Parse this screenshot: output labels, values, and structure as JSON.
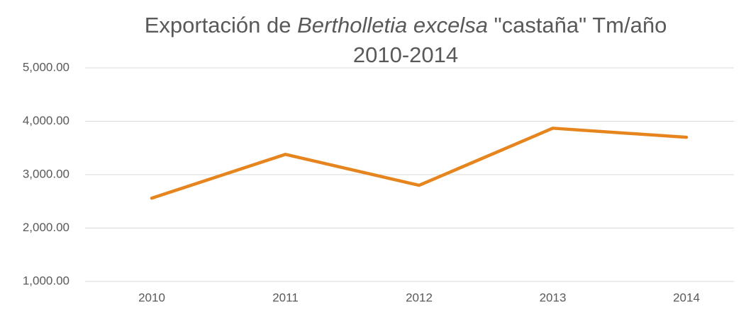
{
  "chart_data": {
    "type": "line",
    "title": [
      "Exportación de",
      "Bertholletia excelsa",
      "\"castaña\" Tm/año",
      "2010-2014"
    ],
    "categories": [
      "2010",
      "2011",
      "2012",
      "2013",
      "2014"
    ],
    "series": [
      {
        "color": "#e6851e",
        "values": [
          2560,
          3380,
          2800,
          3870,
          3700
        ]
      }
    ],
    "ylim": [
      1000,
      5000
    ],
    "yticks": [
      {
        "value": 1000,
        "label": "1,000.00"
      },
      {
        "value": 2000,
        "label": "2,000.00"
      },
      {
        "value": 3000,
        "label": "3,000.00"
      },
      {
        "value": 4000,
        "label": "4,000.00"
      },
      {
        "value": 5000,
        "label": "5,000.00"
      }
    ],
    "grid": true
  }
}
